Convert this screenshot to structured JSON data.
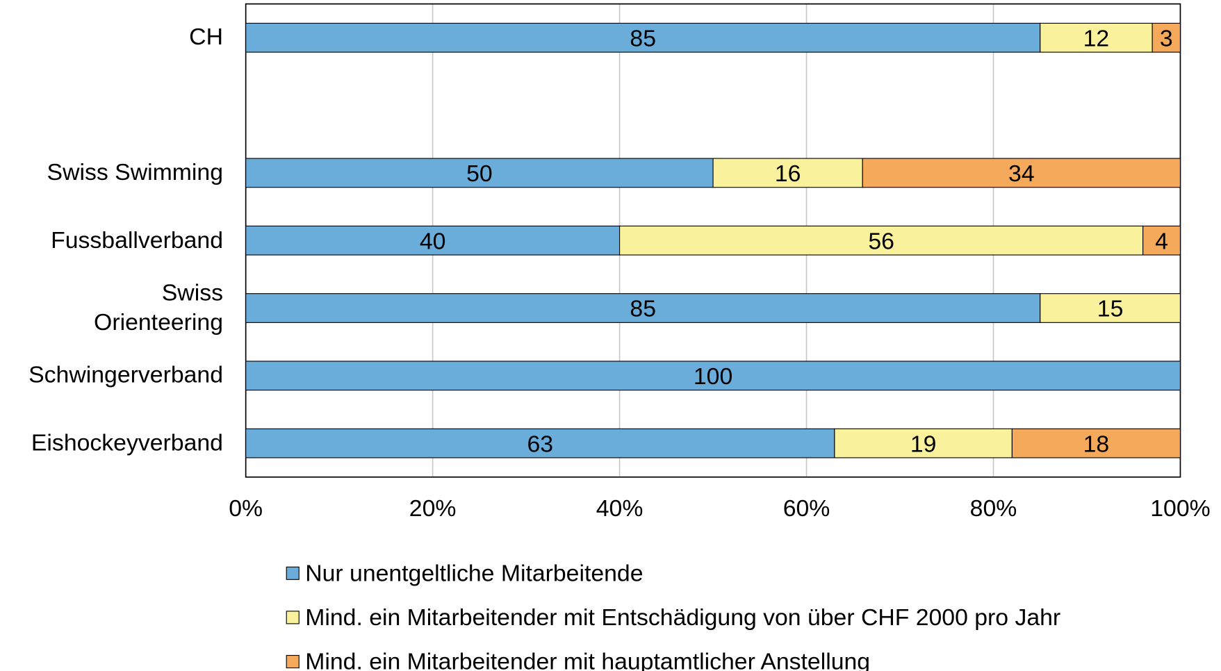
{
  "chart_data": {
    "type": "stacked_barh",
    "categories": [
      "CH",
      null,
      "Swiss Swimming",
      "Fussballverband",
      "Swiss\nOrienteering",
      "Schwingerverband",
      "Eishockeyverband"
    ],
    "series": [
      {
        "name": "Nur unentgeltliche Mitarbeitende",
        "color": "#6aaddb",
        "values": [
          85,
          null,
          50,
          40,
          85,
          100,
          63
        ]
      },
      {
        "name": "Mind. ein Mitarbeitender mit Entschädigung von über CHF 2000 pro Jahr",
        "color": "#f9f19c",
        "values": [
          12,
          null,
          16,
          56,
          15,
          null,
          19
        ]
      },
      {
        "name": "Mind. ein Mitarbeitender mit hauptamtlicher Anstellung",
        "color": "#f5a95a",
        "values": [
          3,
          null,
          34,
          4,
          null,
          null,
          18
        ]
      }
    ],
    "xlim": [
      0,
      100
    ],
    "xticks": [
      {
        "value": 0,
        "label": "0%"
      },
      {
        "value": 20,
        "label": "20%"
      },
      {
        "value": 40,
        "label": "40%"
      },
      {
        "value": 60,
        "label": "60%"
      },
      {
        "value": 80,
        "label": "80%"
      },
      {
        "value": 100,
        "label": "100%"
      }
    ],
    "grid": true,
    "legend": "bottom"
  }
}
